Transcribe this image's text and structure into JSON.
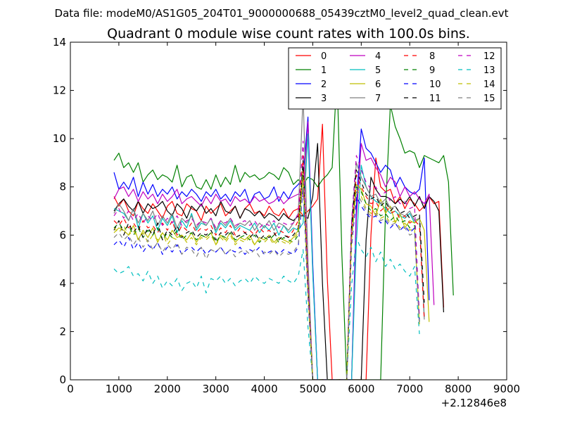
{
  "figure": {
    "suptitle": "Data file: modeM0/AS1G05_204T01_9000000688_05439cztM0_level2_quad_clean.evt"
  },
  "chart_data": {
    "type": "line",
    "title": "Quadrant 0 module wise count rates with 100.0s bins.",
    "xlabel": "",
    "ylabel": "",
    "x_offset_label": "+2.12846e8",
    "xlim": [
      0,
      9000
    ],
    "ylim": [
      0,
      14
    ],
    "xticks": [
      0,
      1000,
      2000,
      3000,
      4000,
      5000,
      6000,
      7000,
      8000,
      9000
    ],
    "yticks": [
      0,
      2,
      4,
      6,
      8,
      10,
      12,
      14
    ],
    "legend_position": "top-right",
    "legend_columns": 4,
    "x_start": 900,
    "x_step": 100,
    "series": [
      {
        "name": "0",
        "color": "#ff0000",
        "dash": "solid",
        "values": [
          7.6,
          7.2,
          7.5,
          7.0,
          6.8,
          7.4,
          7.1,
          6.9,
          7.3,
          7.0,
          6.7,
          7.2,
          7.4,
          6.9,
          6.8,
          7.3,
          7.1,
          7.0,
          6.6,
          7.2,
          6.9,
          7.1,
          7.3,
          6.8,
          7.0,
          7.2,
          6.7,
          7.1,
          7.3,
          6.9,
          7.0,
          6.8,
          7.2,
          6.9,
          6.8,
          7.1,
          6.7,
          7.0,
          7.1,
          6.8,
          7.0,
          7.2,
          7.5,
          10.6,
          4.2,
          0,
          0,
          0,
          0,
          0,
          0,
          0,
          0,
          6.0,
          9.2,
          8.0,
          7.8,
          7.9,
          7.3,
          7.6,
          7.1,
          7.5,
          7.3,
          7.0,
          7.2,
          7.6,
          7.3,
          7.4,
          3.0
        ]
      },
      {
        "name": "1",
        "color": "#008000",
        "dash": "solid",
        "values": [
          9.1,
          9.4,
          8.8,
          9.0,
          8.6,
          9.0,
          8.2,
          8.5,
          8.7,
          8.3,
          8.5,
          8.4,
          8.2,
          8.9,
          8.0,
          8.4,
          8.5,
          8.0,
          7.9,
          8.3,
          7.9,
          8.5,
          8.0,
          8.4,
          8.1,
          8.9,
          8.2,
          8.6,
          8.4,
          8.5,
          8.3,
          8.4,
          8.6,
          8.5,
          8.3,
          8.8,
          8.6,
          8.1,
          8.3,
          8.1,
          8.4,
          8.3,
          8.0,
          8.3,
          8.5,
          8.8,
          12.7,
          5.2,
          0,
          0,
          0,
          0,
          0,
          0,
          0,
          0,
          7.0,
          11.4,
          10.5,
          10.0,
          9.4,
          9.5,
          9.4,
          8.8,
          9.3,
          9.2,
          9.1,
          9.0,
          9.3,
          8.2,
          3.5
        ]
      },
      {
        "name": "2",
        "color": "#0000ff",
        "dash": "solid",
        "values": [
          8.6,
          7.9,
          8.2,
          7.9,
          8.4,
          7.6,
          8.2,
          7.7,
          8.1,
          7.6,
          7.9,
          7.7,
          8.0,
          7.5,
          7.8,
          7.6,
          7.9,
          7.7,
          7.4,
          7.8,
          7.6,
          7.9,
          7.5,
          7.7,
          7.4,
          7.8,
          7.6,
          7.9,
          7.3,
          7.7,
          7.8,
          7.5,
          7.6,
          8.0,
          7.4,
          7.8,
          7.5,
          7.9,
          8.1,
          8.4,
          10.9,
          4.8,
          0,
          0,
          0,
          0,
          0,
          0,
          0,
          0,
          7.2,
          10.4,
          9.6,
          9.4,
          9.0,
          8.6,
          8.9,
          8.7,
          8.0,
          8.4,
          8.0,
          7.8,
          7.7,
          7.9,
          9.2,
          3.3
        ]
      },
      {
        "name": "3",
        "color": "#000000",
        "dash": "solid",
        "values": [
          7.0,
          7.3,
          7.5,
          7.2,
          7.0,
          7.4,
          6.9,
          7.3,
          7.1,
          7.2,
          7.4,
          7.0,
          6.8,
          7.3,
          7.1,
          6.7,
          7.2,
          7.0,
          7.3,
          6.9,
          7.1,
          6.8,
          7.4,
          7.0,
          6.9,
          7.2,
          6.7,
          7.1,
          7.0,
          6.8,
          7.0,
          6.7,
          6.9,
          6.8,
          6.6,
          6.9,
          6.7,
          6.6,
          6.8,
          6.8,
          6.7,
          7.6,
          9.8,
          4.0,
          0,
          0,
          0,
          0,
          0,
          0,
          0,
          0,
          5.8,
          8.4,
          7.9,
          7.6,
          7.6,
          7.5,
          7.3,
          7.5,
          7.3,
          7.6,
          7.2,
          7.6,
          7.1,
          7.6,
          7.4,
          7.0,
          2.8
        ]
      },
      {
        "name": "4",
        "color": "#bf00bf",
        "dash": "solid",
        "values": [
          7.5,
          7.9,
          8.0,
          7.6,
          7.9,
          7.4,
          7.8,
          7.5,
          7.7,
          7.3,
          7.7,
          7.4,
          7.6,
          7.9,
          7.3,
          7.5,
          7.6,
          7.4,
          7.2,
          7.6,
          7.3,
          7.7,
          7.4,
          7.5,
          7.2,
          7.6,
          7.4,
          7.5,
          7.3,
          7.6,
          7.4,
          7.5,
          7.3,
          7.4,
          7.6,
          7.3,
          7.5,
          7.6,
          7.7,
          7.6,
          10.7,
          4.5,
          0,
          0,
          0,
          0,
          0,
          0,
          0,
          0,
          6.7,
          9.8,
          9.1,
          9.2,
          8.8,
          8.5,
          8.0,
          8.4,
          8.2,
          7.6,
          8.0,
          7.6,
          7.8,
          7.5,
          7.3,
          7.7,
          3.1
        ]
      },
      {
        "name": "5",
        "color": "#00bfbf",
        "dash": "solid",
        "values": [
          7.1,
          7.0,
          6.9,
          6.6,
          7.1,
          6.3,
          6.9,
          6.5,
          6.8,
          6.2,
          6.7,
          6.4,
          6.8,
          6.1,
          6.6,
          6.3,
          6.9,
          6.2,
          6.5,
          6.4,
          6.7,
          6.1,
          6.5,
          6.3,
          6.6,
          6.2,
          6.4,
          6.3,
          6.2,
          6.5,
          6.1,
          6.4,
          6.2,
          6.5,
          6.0,
          6.4,
          6.1,
          6.3,
          6.2,
          6.5,
          10.2,
          4.4,
          0,
          0,
          0,
          0,
          0,
          0,
          0,
          0,
          5.7,
          8.9,
          8.0,
          7.6,
          7.4,
          7.3,
          7.1,
          6.9,
          7.0,
          6.8,
          6.7,
          6.9,
          6.5,
          6.7,
          2.6
        ]
      },
      {
        "name": "6",
        "color": "#bfbf00",
        "dash": "solid",
        "values": [
          6.1,
          6.3,
          6.2,
          6.0,
          6.4,
          5.8,
          6.2,
          5.9,
          6.3,
          5.7,
          6.1,
          5.8,
          6.2,
          5.9,
          6.0,
          5.8,
          6.1,
          5.7,
          6.0,
          5.9,
          6.1,
          5.6,
          6.0,
          5.8,
          6.1,
          5.7,
          5.9,
          5.8,
          6.0,
          5.6,
          5.9,
          5.8,
          6.0,
          5.7,
          5.9,
          5.8,
          5.7,
          5.9,
          6.2,
          8.6,
          3.8,
          0,
          0,
          0,
          0,
          0,
          0,
          0,
          0,
          6.3,
          8.1,
          7.9,
          7.3,
          7.2,
          6.8,
          7.5,
          6.9,
          7.2,
          6.5,
          6.9,
          6.3,
          6.6,
          6.5,
          6.7,
          6.2,
          2.4
        ]
      },
      {
        "name": "7",
        "color": "#808080",
        "dash": "solid",
        "values": [
          6.9,
          7.3,
          7.0,
          6.6,
          7.1,
          6.5,
          6.9,
          6.6,
          7.0,
          6.4,
          6.8,
          6.5,
          6.9,
          6.3,
          6.7,
          6.5,
          6.8,
          6.3,
          6.6,
          6.4,
          6.7,
          6.2,
          6.6,
          6.4,
          6.7,
          6.3,
          6.5,
          6.4,
          6.6,
          6.2,
          6.5,
          6.3,
          6.6,
          6.2,
          6.5,
          6.4,
          6.2,
          6.5,
          6.9,
          11.8,
          5.0,
          0,
          0,
          0,
          0,
          0,
          0,
          0,
          0,
          6.5,
          9.0,
          8.4,
          8.0,
          7.6,
          7.7,
          7.3,
          7.5,
          7.1,
          7.2,
          6.9,
          6.8,
          7.0,
          6.6,
          6.7,
          2.5
        ]
      },
      {
        "name": "8",
        "color": "#ff0000",
        "dash": "dashed",
        "values": [
          6.6,
          6.4,
          6.7,
          6.3,
          6.5,
          6.2,
          6.6,
          6.3,
          6.4,
          6.1,
          6.5,
          6.2,
          6.6,
          6.0,
          6.4,
          6.2,
          6.5,
          6.1,
          6.3,
          6.2,
          6.4,
          6.0,
          6.3,
          6.1,
          6.4,
          6.0,
          6.3,
          6.1,
          6.2,
          6.0,
          6.3,
          6.1,
          6.2,
          6.0,
          6.2,
          6.1,
          5.9,
          6.2,
          6.6,
          9.3,
          4.0,
          0,
          0,
          0,
          0,
          0,
          0,
          0,
          0,
          6.0,
          8.5,
          8.0,
          7.6,
          7.3,
          7.4,
          7.0,
          7.2,
          6.9,
          7.0,
          6.7,
          6.8,
          6.5,
          6.6,
          6.4,
          2.5
        ]
      },
      {
        "name": "9",
        "color": "#008000",
        "dash": "dashed",
        "values": [
          6.3,
          6.5,
          6.2,
          6.4,
          6.0,
          6.3,
          5.9,
          6.2,
          6.0,
          6.3,
          5.8,
          6.1,
          5.9,
          6.2,
          5.8,
          6.0,
          6.1,
          5.8,
          6.0,
          5.9,
          6.1,
          5.7,
          6.0,
          5.9,
          6.1,
          5.8,
          5.9,
          6.0,
          5.8,
          6.0,
          5.7,
          5.9,
          5.8,
          6.0,
          5.7,
          5.9,
          5.8,
          5.7,
          6.0,
          8.7,
          3.8,
          0,
          0,
          0,
          0,
          0,
          0,
          0,
          0,
          6.1,
          8.0,
          7.8,
          7.3,
          7.0,
          7.1,
          6.8,
          6.9,
          6.6,
          6.8,
          6.5,
          6.6,
          6.3,
          6.4,
          2.4
        ]
      },
      {
        "name": "10",
        "color": "#0000ff",
        "dash": "dashed",
        "values": [
          5.6,
          5.8,
          5.5,
          5.9,
          5.4,
          5.7,
          5.3,
          5.6,
          5.4,
          5.7,
          5.2,
          5.5,
          5.3,
          5.6,
          5.2,
          5.4,
          5.5,
          5.3,
          5.5,
          5.2,
          5.4,
          5.3,
          5.5,
          5.2,
          5.4,
          5.3,
          5.5,
          5.2,
          5.4,
          5.3,
          5.5,
          5.2,
          5.3,
          5.4,
          5.2,
          5.4,
          5.3,
          5.2,
          5.5,
          8.0,
          3.4,
          0,
          0,
          0,
          0,
          0,
          0,
          0,
          0,
          5.5,
          7.6,
          7.2,
          6.9,
          6.7,
          6.8,
          6.5,
          6.6,
          6.3,
          6.5,
          6.2,
          6.4,
          6.1,
          6.3,
          2.3
        ]
      },
      {
        "name": "11",
        "color": "#000000",
        "dash": "dashed",
        "values": [
          6.2,
          6.6,
          6.0,
          6.5,
          6.1,
          6.4,
          5.9,
          6.3,
          6.0,
          6.5,
          5.8,
          6.2,
          6.0,
          6.4,
          5.9,
          6.1,
          6.2,
          5.9,
          6.1,
          6.0,
          6.2,
          5.8,
          6.1,
          6.0,
          6.2,
          5.9,
          6.0,
          6.1,
          5.9,
          6.1,
          5.8,
          6.0,
          5.9,
          6.1,
          5.8,
          6.0,
          5.9,
          6.0,
          6.3,
          9.1,
          3.9,
          0,
          0,
          0,
          0,
          0,
          0,
          0,
          0,
          6.4,
          8.7,
          8.2,
          7.7,
          7.5,
          7.6,
          7.2,
          7.4,
          7.0,
          7.2,
          6.9,
          7.0,
          6.7,
          6.8,
          6.9,
          3.2
        ]
      },
      {
        "name": "12",
        "color": "#bf00bf",
        "dash": "dashed",
        "values": [
          6.8,
          7.1,
          6.7,
          7.0,
          6.6,
          6.9,
          6.5,
          6.8,
          6.6,
          6.9,
          6.4,
          6.7,
          6.5,
          6.8,
          6.4,
          6.6,
          6.7,
          6.4,
          6.6,
          6.5,
          6.7,
          6.3,
          6.6,
          6.5,
          6.7,
          6.4,
          6.5,
          6.6,
          6.4,
          6.6,
          6.3,
          6.5,
          6.4,
          6.6,
          6.3,
          6.5,
          6.4,
          6.5,
          6.9,
          9.9,
          4.2,
          0,
          0,
          0,
          0,
          0,
          0,
          0,
          0,
          6.6,
          9.3,
          8.7,
          8.2,
          7.9,
          8.0,
          7.6,
          7.8,
          7.4,
          7.6,
          7.3,
          7.4,
          7.1,
          7.2,
          2.6
        ]
      },
      {
        "name": "13",
        "color": "#00bfbf",
        "dash": "dashed",
        "values": [
          4.6,
          4.4,
          4.5,
          4.7,
          4.3,
          4.4,
          4.1,
          4.5,
          4.0,
          4.3,
          3.8,
          4.1,
          3.9,
          4.2,
          3.7,
          4.0,
          4.1,
          3.8,
          4.3,
          3.6,
          4.2,
          4.1,
          4.3,
          4.0,
          4.2,
          3.9,
          4.1,
          4.2,
          4.0,
          4.3,
          4.1,
          4.0,
          4.2,
          4.1,
          4.0,
          4.3,
          4.1,
          4.0,
          4.3,
          5.4,
          2.2,
          0,
          0,
          0,
          0,
          0,
          0,
          0,
          0,
          3.9,
          5.9,
          5.4,
          5.1,
          5.5,
          4.9,
          5.3,
          4.7,
          5.0,
          4.6,
          4.8,
          4.5,
          4.3,
          4.7,
          1.9
        ]
      },
      {
        "name": "14",
        "color": "#bfbf00",
        "dash": "dashed",
        "values": [
          6.3,
          6.1,
          6.4,
          6.0,
          6.2,
          5.8,
          6.1,
          5.7,
          6.0,
          5.8,
          6.1,
          5.6,
          5.9,
          5.8,
          6.0,
          5.7,
          5.9,
          5.6,
          5.9,
          5.8,
          6.0,
          5.6,
          5.9,
          5.7,
          6.0,
          5.6,
          5.8,
          5.7,
          5.9,
          5.6,
          5.8,
          5.7,
          5.9,
          5.6,
          5.8,
          5.7,
          5.6,
          5.8,
          6.1,
          8.4,
          3.6,
          0,
          0,
          0,
          0,
          0,
          0,
          0,
          0,
          5.8,
          7.9,
          7.6,
          7.1,
          6.9,
          7.0,
          6.7,
          6.8,
          6.5,
          6.6,
          6.3,
          6.5,
          6.2,
          6.3,
          2.3
        ]
      },
      {
        "name": "15",
        "color": "#808080",
        "dash": "dashed",
        "values": [
          5.9,
          6.1,
          5.8,
          6.0,
          5.6,
          5.9,
          5.5,
          5.8,
          5.4,
          5.7,
          5.3,
          5.6,
          5.4,
          5.7,
          5.2,
          5.5,
          5.4,
          5.1,
          5.5,
          5.0,
          5.4,
          5.3,
          5.5,
          5.2,
          5.4,
          5.1,
          5.3,
          5.4,
          5.2,
          5.4,
          5.1,
          5.3,
          5.2,
          5.4,
          5.1,
          5.3,
          5.2,
          5.3,
          5.6,
          8.2,
          3.5,
          0,
          0,
          0,
          0,
          0,
          0,
          0,
          0,
          5.6,
          7.8,
          7.4,
          7.0,
          6.8,
          6.9,
          6.6,
          6.7,
          6.4,
          6.5,
          6.2,
          6.3,
          6.0,
          6.1,
          2.2
        ]
      }
    ]
  }
}
